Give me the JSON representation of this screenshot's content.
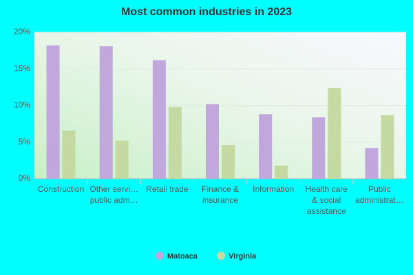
{
  "chart_data": {
    "type": "bar",
    "title": "Most common industries in 2023",
    "categories": [
      "Construction",
      "Other servi…\npublic adm…",
      "Retail trade",
      "Finance &\ninsurance",
      "Information",
      "Health care\n& social\nassistance",
      "Public\nadministrat…"
    ],
    "series": [
      {
        "name": "Matoaca",
        "color": "#c0a8dc",
        "values": [
          18.2,
          18.1,
          16.2,
          10.2,
          8.8,
          8.4,
          4.2
        ]
      },
      {
        "name": "Virginia",
        "color": "#c5d9a3",
        "values": [
          6.6,
          5.2,
          9.8,
          4.6,
          1.8,
          12.4,
          8.7
        ]
      }
    ],
    "ylim": [
      0,
      20
    ],
    "yticks": [
      {
        "value": 0,
        "label": "0%"
      },
      {
        "value": 5,
        "label": "5%"
      },
      {
        "value": 10,
        "label": "10%"
      },
      {
        "value": 15,
        "label": "15%"
      },
      {
        "value": 20,
        "label": "20%"
      }
    ],
    "grid": true,
    "legend": "bottom"
  }
}
